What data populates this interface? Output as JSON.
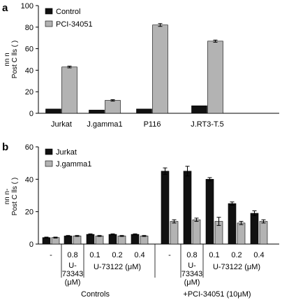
{
  "chart_data": [
    {
      "type": "bar",
      "panel_label": "a",
      "ylabel_lines": [
        "nn  n",
        "Post  C lls ( )"
      ],
      "ylim": [
        0,
        100
      ],
      "yticks": [
        0,
        20,
        40,
        60,
        80,
        100
      ],
      "categories": [
        "Jurkat",
        "J.gamma1",
        "P116",
        "J.RT3-T.5"
      ],
      "series": [
        {
          "name": "Control",
          "color": "#111111",
          "values": [
            4,
            3,
            4,
            7
          ],
          "errors": [
            0,
            0,
            0,
            0
          ]
        },
        {
          "name": "PCI-34051",
          "color": "#b3b3b3",
          "values": [
            43,
            12,
            82,
            67
          ],
          "errors": [
            0.8,
            0.7,
            1.3,
            1.0
          ]
        }
      ],
      "legend_position": "top-left"
    },
    {
      "type": "bar",
      "panel_label": "b",
      "ylabel_lines": [
        "nn  n-",
        "Post  C lls ( )"
      ],
      "ylim": [
        0,
        60
      ],
      "yticks": [
        0,
        20,
        40,
        60
      ],
      "categories": [
        "-",
        "0.8",
        "0.1",
        "0.2",
        "0.4",
        "-",
        "0.8",
        "0.1",
        "0.2",
        "0.4"
      ],
      "series": [
        {
          "name": "Jurkat",
          "color": "#111111",
          "values": [
            4,
            5,
            6,
            6,
            6,
            45,
            45,
            40,
            25,
            19
          ],
          "errors": [
            0.3,
            0.3,
            0.3,
            0.3,
            0.3,
            2.0,
            3.0,
            1.0,
            1.0,
            1.5
          ]
        },
        {
          "name": "J.gamma1",
          "color": "#b3b3b3",
          "values": [
            4,
            5,
            5,
            5,
            5,
            14,
            15,
            14,
            13,
            14
          ],
          "errors": [
            0.3,
            0.3,
            0.3,
            0.3,
            0.3,
            1.0,
            1.0,
            2.5,
            1.0,
            1.0
          ]
        }
      ],
      "sublabels": [
        {
          "text_lines": [
            "U-",
            "73343",
            "(μM)"
          ],
          "category_index": 1
        },
        {
          "text_lines": [
            "U-73122 (μM)"
          ],
          "category_range": [
            2,
            4
          ]
        },
        {
          "text_lines": [
            "U-",
            "73343",
            "(μM)"
          ],
          "category_index": 6
        },
        {
          "text_lines": [
            "U-73122 (μM)"
          ],
          "category_range": [
            7,
            9
          ]
        }
      ],
      "groups": [
        {
          "label": "Controls",
          "category_range": [
            0,
            4
          ]
        },
        {
          "label": "+PCI-34051 (10μM)",
          "category_range": [
            5,
            9
          ]
        }
      ],
      "legend_position": "top-left"
    }
  ]
}
